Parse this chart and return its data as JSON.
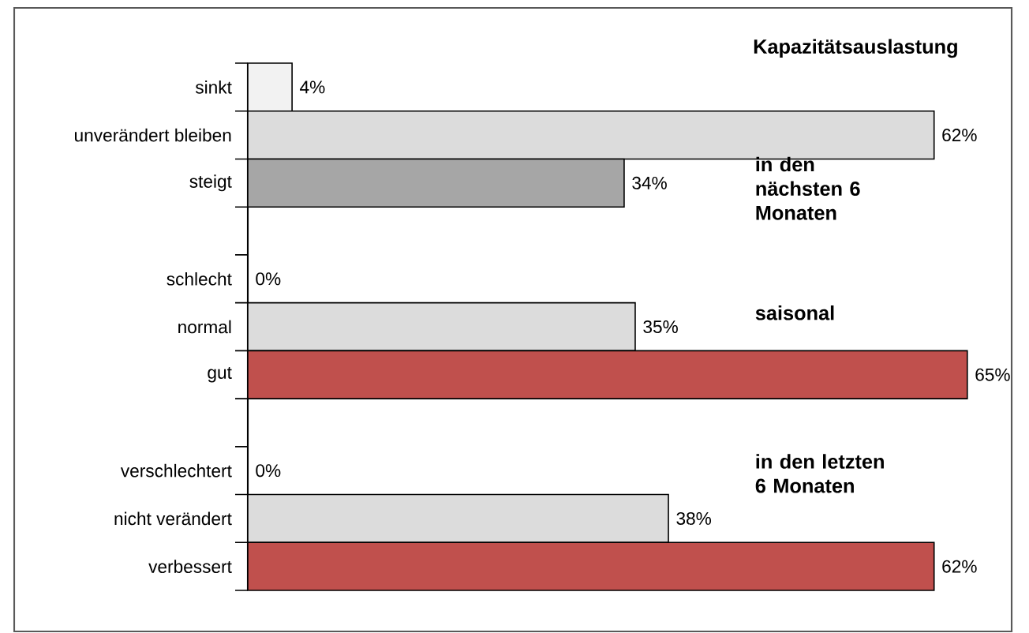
{
  "chart_data": {
    "type": "bar",
    "orientation": "horizontal",
    "title": "Kapazitätsauslastung",
    "categories": [
      "sinkt",
      "unverändert bleiben",
      "steigt",
      null,
      "schlecht",
      "normal",
      "gut",
      null,
      "verschlechtert",
      "nicht verändert",
      "verbessert"
    ],
    "values": [
      4,
      62,
      34,
      null,
      0,
      35,
      65,
      null,
      0,
      38,
      62
    ],
    "colors": [
      "#f2f2f2",
      "#dcdcdc",
      "#a6a6a6",
      null,
      "#dcdcdc",
      "#dcdcdc",
      "#c0504d",
      null,
      "#dcdcdc",
      "#dcdcdc",
      "#c0504d"
    ],
    "value_labels": [
      "4%",
      "62%",
      "34%",
      null,
      "0%",
      "35%",
      "65%",
      null,
      "0%",
      "38%",
      "62%"
    ],
    "annotations": [
      "in den nächsten 6 Monaten",
      "saisonal",
      "in den letzten 6 Monaten"
    ]
  }
}
